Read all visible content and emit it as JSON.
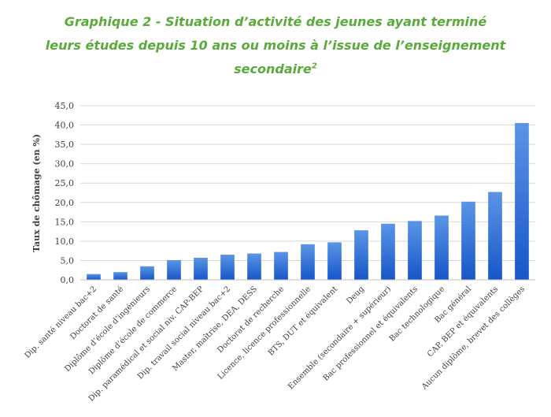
{
  "chart_data": {
    "type": "bar",
    "title_lines": [
      "Graphique 2 - Situation d’activité des jeunes ayant terminé",
      "leurs études depuis 10 ans ou moins à l’issue de l’enseignement",
      "secondaire"
    ],
    "title_superscript": "2",
    "ylabel": "Taux de chômage (en %)",
    "xlabel": "",
    "ylim": [
      0,
      45
    ],
    "yticks": [
      "0,0",
      "5,0",
      "10,0",
      "15,0",
      "20,0",
      "25,0",
      "30,0",
      "35,0",
      "40,0",
      "45,0"
    ],
    "grid": true,
    "categories": [
      "Dip. santé niveau bac+2",
      "Doctorat de santé",
      "Diplôme d’école d’ingénieurs",
      "Diplôme d’école de commerce",
      "Dip. paramédical et social niv. CAP-BEP",
      "Dip. travail social niveau bac+2",
      "Master, maîtrise, DEA, DESS",
      "Doctorat de recherche",
      "Licence, licence professionnelle",
      "BTS, DUT et équivalent",
      "Deug",
      "Ensemble (secondaire + supérieur)",
      "Bac professionnel et équivalents",
      "Bac technologique",
      "Bac général",
      "CAP, BEP et équivalents",
      "Aucun diplôme, brevet des collèges"
    ],
    "values": [
      1.5,
      2.0,
      3.5,
      5.1,
      5.7,
      6.5,
      6.8,
      7.2,
      9.2,
      9.7,
      12.8,
      14.5,
      15.2,
      16.6,
      20.2,
      22.7,
      40.5
    ],
    "colors": {
      "bar_top": "#5b95e6",
      "bar_bottom": "#1656c8",
      "title": "#5aaa3c",
      "grid": "#d9d9d9",
      "text": "#404040"
    }
  }
}
